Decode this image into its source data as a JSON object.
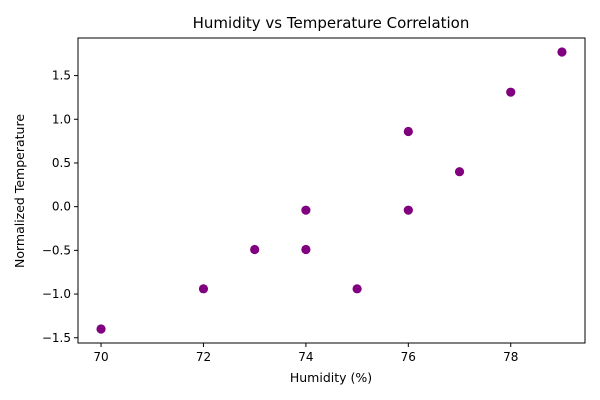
{
  "chart_data": {
    "type": "scatter",
    "title": "Humidity vs Temperature Correlation",
    "xlabel": "Humidity (%)",
    "ylabel": "Normalized Temperature",
    "xlim": [
      69.55,
      79.45
    ],
    "ylim": [
      -1.56,
      1.93
    ],
    "x_ticks": [
      70,
      72,
      74,
      76,
      78
    ],
    "y_ticks": [
      -1.5,
      -1.0,
      -0.5,
      0.0,
      0.5,
      1.0,
      1.5
    ],
    "y_tick_labels": [
      "−1.5",
      "−1.0",
      "−0.5",
      "0.0",
      "0.5",
      "1.0",
      "1.5"
    ],
    "grid": false,
    "marker_color": "#800080",
    "series": [
      {
        "x": [
          70,
          72,
          73,
          74,
          74,
          75,
          76,
          76,
          77,
          78,
          79
        ],
        "y": [
          -1.4,
          -0.94,
          -0.49,
          -0.49,
          -0.04,
          -0.94,
          -0.04,
          0.86,
          0.4,
          1.31,
          1.77
        ]
      }
    ]
  }
}
